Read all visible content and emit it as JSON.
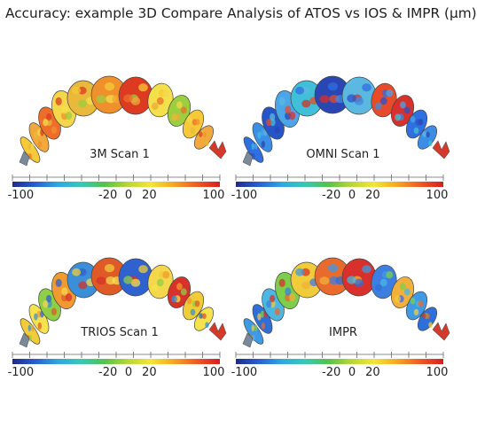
{
  "title": "Accuracy: example 3D Compare Analysis of ATOS vs IOS & IMPR (µm)",
  "panels": [
    {
      "label": "3M Scan 1",
      "scheme": "warm"
    },
    {
      "label": "OMNI Scan 1",
      "scheme": "cool"
    },
    {
      "label": "TRIOS Scan 1",
      "scheme": "mixed"
    },
    {
      "label": "IMPR",
      "scheme": "coolmix"
    }
  ],
  "scale": {
    "tick_labels": [
      "-100",
      "-20",
      "0",
      "20",
      "100"
    ],
    "colors": [
      "#1f2a8c",
      "#2a5fd0",
      "#2fa8e0",
      "#35c9b7",
      "#54c24a",
      "#b9d637",
      "#f2e636",
      "#f5a623",
      "#ee5a24",
      "#d61f1f"
    ]
  }
}
